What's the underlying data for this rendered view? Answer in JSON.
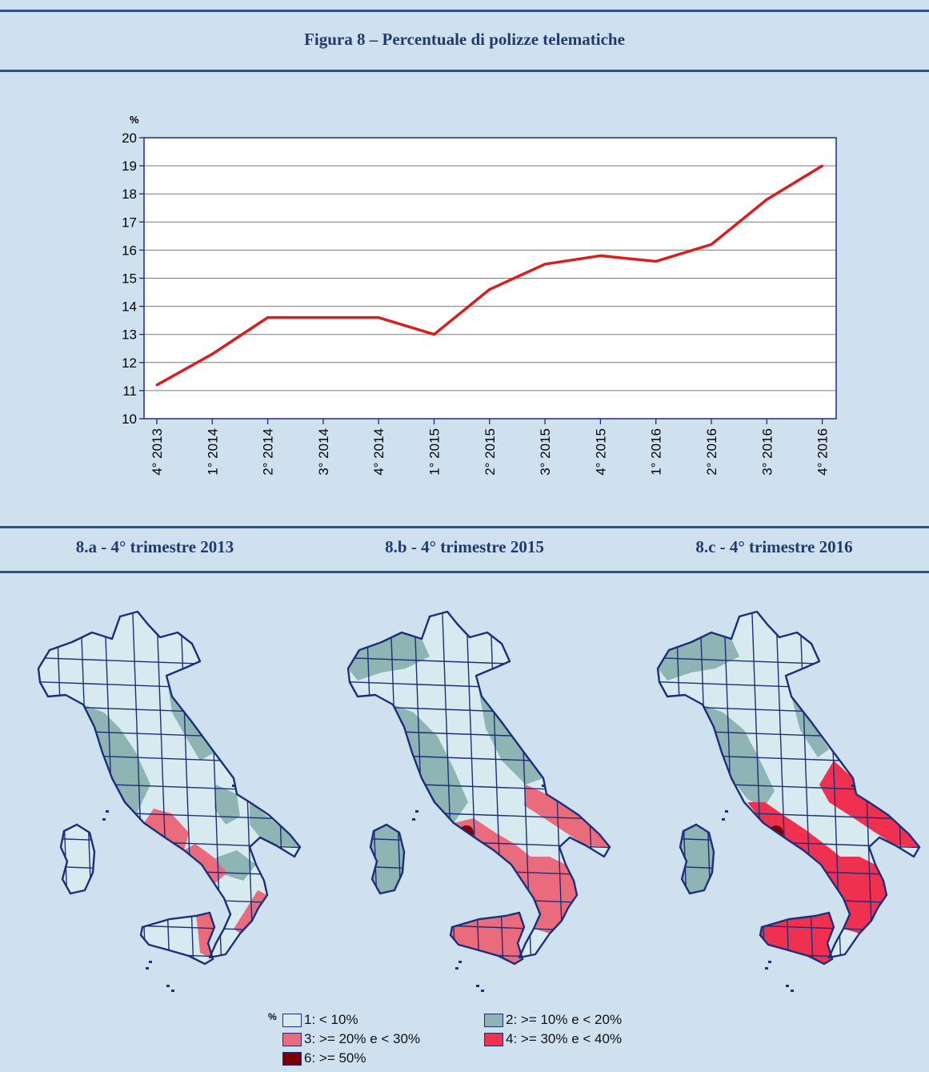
{
  "title": "Figura 8 – Percentuale di polizze telematiche",
  "colors": {
    "background": "#cfe0ef",
    "rule": "#2f4f8f",
    "heading": "#1f3b6f",
    "line": "#d81f1f",
    "class1": "#d6eaf0",
    "class2": "#8fb4b4",
    "class3": "#ea6b7c",
    "class4": "#f0304f",
    "class6": "#7a0000",
    "border": "#1b2f7a"
  },
  "chart_data": {
    "type": "line",
    "ylabel": "%",
    "xlabel": "",
    "ylim": [
      10,
      20
    ],
    "yticks": [
      10,
      11,
      12,
      13,
      14,
      15,
      16,
      17,
      18,
      19,
      20
    ],
    "grid": true,
    "categories": [
      "4° 2013",
      "1° 2014",
      "2° 2014",
      "3° 2014",
      "4° 2014",
      "1° 2015",
      "2° 2015",
      "3° 2015",
      "4° 2015",
      "1° 2016",
      "2° 2016",
      "3° 2016",
      "4° 2016"
    ],
    "values": [
      11.2,
      12.3,
      13.6,
      13.6,
      13.6,
      13.0,
      14.6,
      15.5,
      15.8,
      15.6,
      16.2,
      17.8,
      19.0
    ]
  },
  "maps": [
    {
      "label": "8.a - 4° trimestre 2013",
      "stage": 1
    },
    {
      "label": "8.b - 4° trimestre 2015",
      "stage": 2
    },
    {
      "label": "8.c - 4° trimestre 2016",
      "stage": 3
    }
  ],
  "legend": {
    "title": "%",
    "items": [
      {
        "label": "1: <  10%",
        "color": "#d6eaf0"
      },
      {
        "label": "2: >= 10% e < 20%",
        "color": "#8fb4b4"
      },
      {
        "label": "3: >= 20% e < 30%",
        "color": "#ea6b7c"
      },
      {
        "label": "4: >= 30% e < 40%",
        "color": "#f0304f"
      },
      {
        "label": "6: >= 50%",
        "color": "#7a0000"
      }
    ]
  }
}
